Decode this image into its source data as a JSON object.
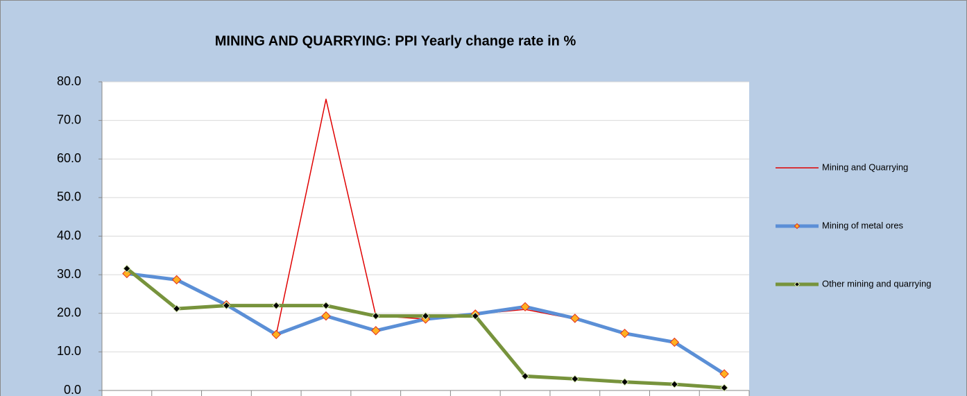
{
  "chart_data": {
    "type": "line",
    "title": "MINING AND QUARRYING:  PPI  Yearly change rate  in %",
    "categories": [
      null,
      null,
      null,
      null,
      null,
      null,
      null,
      null,
      null,
      null,
      null,
      null,
      null
    ],
    "series": [
      {
        "name": "Mining and Quarrying",
        "color": "#e00000",
        "values": [
          30.3,
          28.7,
          22.2,
          14.5,
          75.5,
          19.4,
          18.5,
          19.8,
          21.0,
          18.5,
          14.7,
          12.3,
          4.3
        ]
      },
      {
        "name": "Mining of metal ores",
        "color": "#5b8fd6",
        "marker_color": "#ffb020",
        "marker_edge": "#e03020",
        "values": [
          30.3,
          28.7,
          22.2,
          14.5,
          19.3,
          15.5,
          18.5,
          19.8,
          21.7,
          18.7,
          14.8,
          12.5,
          4.3
        ]
      },
      {
        "name": "Other mining and quarrying",
        "color": "#77933c",
        "marker_color": "#000000",
        "marker_edge": "#d8e8b0",
        "values": [
          31.6,
          21.2,
          22.0,
          22.0,
          22.0,
          19.3,
          19.3,
          19.3,
          3.7,
          3.0,
          2.2,
          1.6,
          0.7
        ]
      }
    ],
    "ylim": [
      0,
      80
    ],
    "yticks": [
      {
        "value": 0,
        "label": "0.0"
      },
      {
        "value": 10,
        "label": "10.0"
      },
      {
        "value": 20,
        "label": "20.0"
      },
      {
        "value": 30,
        "label": "30.0"
      },
      {
        "value": 40,
        "label": "40.0"
      },
      {
        "value": 50,
        "label": "50.0"
      },
      {
        "value": 60,
        "label": "60.0"
      },
      {
        "value": 70,
        "label": "70.0"
      },
      {
        "value": 80,
        "label": "80.0"
      }
    ],
    "grid": true,
    "legend": "right"
  }
}
